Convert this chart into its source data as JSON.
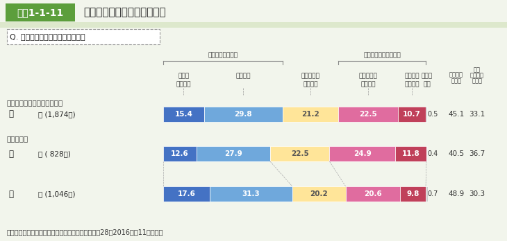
{
  "title_label": "図表1-1-11",
  "title_text": "地域等での共食に対する意識",
  "question": "Q. 地域等での共食に参加したいか",
  "rows": [
    {
      "label1": "総",
      "label2": "数 (1,874人)",
      "values": [
        15.4,
        29.8,
        21.2,
        22.5,
        10.7,
        0.5
      ],
      "totals": [
        45.1,
        33.1
      ]
    },
    {
      "label1": "男",
      "label2": "性 ( 828人)",
      "values": [
        12.6,
        27.9,
        22.5,
        24.9,
        11.8,
        0.4
      ],
      "totals": [
        40.5,
        36.7
      ]
    },
    {
      "label1": "女",
      "label2": "性 (1,046人)",
      "values": [
        17.6,
        31.3,
        20.2,
        20.6,
        9.8,
        0.7
      ],
      "totals": [
        48.9,
        30.3
      ]
    }
  ],
  "bar_colors": [
    "#4472c4",
    "#6fa8dc",
    "#ffe599",
    "#e06c9f",
    "#c0405a",
    "#cccccc"
  ],
  "source": "資料：農林水産省「食育に関する意識調査」（平成28（2016）年11月実施）",
  "bg_color": "#f2f5ec",
  "title_green": "#5c9e3c",
  "white": "#ffffff",
  "border_color": "#aaaaaa",
  "text_dark": "#333333",
  "text_white": "#ffffff"
}
